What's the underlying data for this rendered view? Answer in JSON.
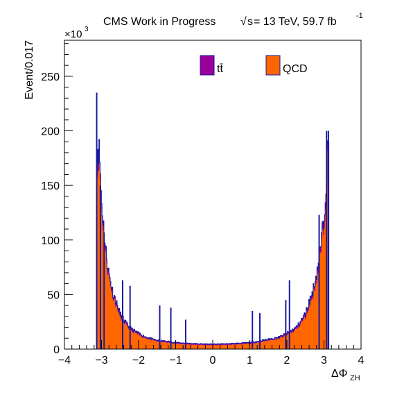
{
  "header": {
    "experiment": "CMS Work in Progress",
    "sqrt_s": "s",
    "lumi_text": " = 13 TeV, 59.7 fb",
    "lumi_exp": "-1"
  },
  "axes": {
    "x_main": "ΔΦ",
    "x_sub": "ZH",
    "ylabel": "Event/0.017",
    "multiplier_base": "×10",
    "multiplier_exp": "3"
  },
  "legend": [
    {
      "label": "tt̄",
      "color": "#990099"
    },
    {
      "label": "QCD",
      "color": "#ff6600"
    }
  ],
  "colors": {
    "ttbar": "#990099",
    "qcd": "#ff6600",
    "outline": "#1a1aa0"
  },
  "chart_data": {
    "type": "histogram",
    "stacked": true,
    "bin_width": 0.017,
    "xlim": [
      -4,
      4
    ],
    "ylim": [
      0,
      283
    ],
    "y_unit": "×10^3 events",
    "x_ticks": [
      -4,
      -3,
      -2,
      -1,
      0,
      1,
      2,
      3,
      4
    ],
    "y_ticks": [
      0,
      50,
      100,
      150,
      200,
      250
    ],
    "grid": false,
    "legend_position": "top",
    "series": [
      {
        "name": "QCD",
        "x": [
          -3.14,
          -3.1,
          -3.05,
          -3.0,
          -2.9,
          -2.8,
          -2.7,
          -2.6,
          -2.5,
          -2.4,
          -2.3,
          -2.2,
          -2.0,
          -1.8,
          -1.5,
          -1.2,
          -1.0,
          -0.5,
          0.0,
          0.5,
          1.0,
          1.2,
          1.5,
          1.8,
          2.0,
          2.2,
          2.3,
          2.4,
          2.5,
          2.6,
          2.7,
          2.8,
          2.9,
          3.0,
          3.05,
          3.1,
          3.14
        ],
        "values": [
          118,
          182,
          170,
          130,
          90,
          65,
          50,
          40,
          30,
          25,
          20,
          17,
          13,
          10,
          7,
          6,
          5,
          4,
          3.5,
          4,
          5,
          6,
          8,
          10,
          13,
          17,
          20,
          25,
          30,
          40,
          50,
          65,
          85,
          115,
          145,
          175,
          175
        ]
      },
      {
        "name": "tt̄",
        "x": [
          -3.14,
          -3.1,
          -3.05,
          -3.0,
          -2.9,
          -2.8,
          -2.7,
          -2.6,
          -2.5,
          -2.4,
          -2.3,
          -2.2,
          -2.0,
          -1.8,
          -1.5,
          -1.2,
          -1.0,
          -0.5,
          0.0,
          0.5,
          1.0,
          1.2,
          1.5,
          1.8,
          2.0,
          2.2,
          2.3,
          2.4,
          2.5,
          2.6,
          2.7,
          2.8,
          2.9,
          3.0,
          3.05,
          3.1,
          3.14
        ],
        "values": [
          3,
          8,
          7,
          6,
          5,
          4,
          3,
          3,
          2.5,
          2,
          2,
          1.5,
          1.5,
          1,
          1,
          1,
          1,
          1,
          1,
          1,
          1,
          1,
          1,
          1,
          1.5,
          1.5,
          2,
          2,
          2.5,
          3,
          3,
          4,
          5,
          6,
          7,
          8,
          8
        ]
      }
    ],
    "spikes": [
      {
        "x": -3.13,
        "y": 235
      },
      {
        "x": -3.03,
        "y": 150
      },
      {
        "x": -2.93,
        "y": 107
      },
      {
        "x": -2.43,
        "y": 63
      },
      {
        "x": -2.23,
        "y": 58
      },
      {
        "x": -1.43,
        "y": 40
      },
      {
        "x": -1.13,
        "y": 38
      },
      {
        "x": -0.73,
        "y": 27
      },
      {
        "x": 1.07,
        "y": 35
      },
      {
        "x": 1.27,
        "y": 33
      },
      {
        "x": 1.97,
        "y": 45
      },
      {
        "x": 2.07,
        "y": 63
      },
      {
        "x": 2.87,
        "y": 123
      },
      {
        "x": 3.07,
        "y": 200
      },
      {
        "x": 3.12,
        "y": 200
      }
    ]
  }
}
